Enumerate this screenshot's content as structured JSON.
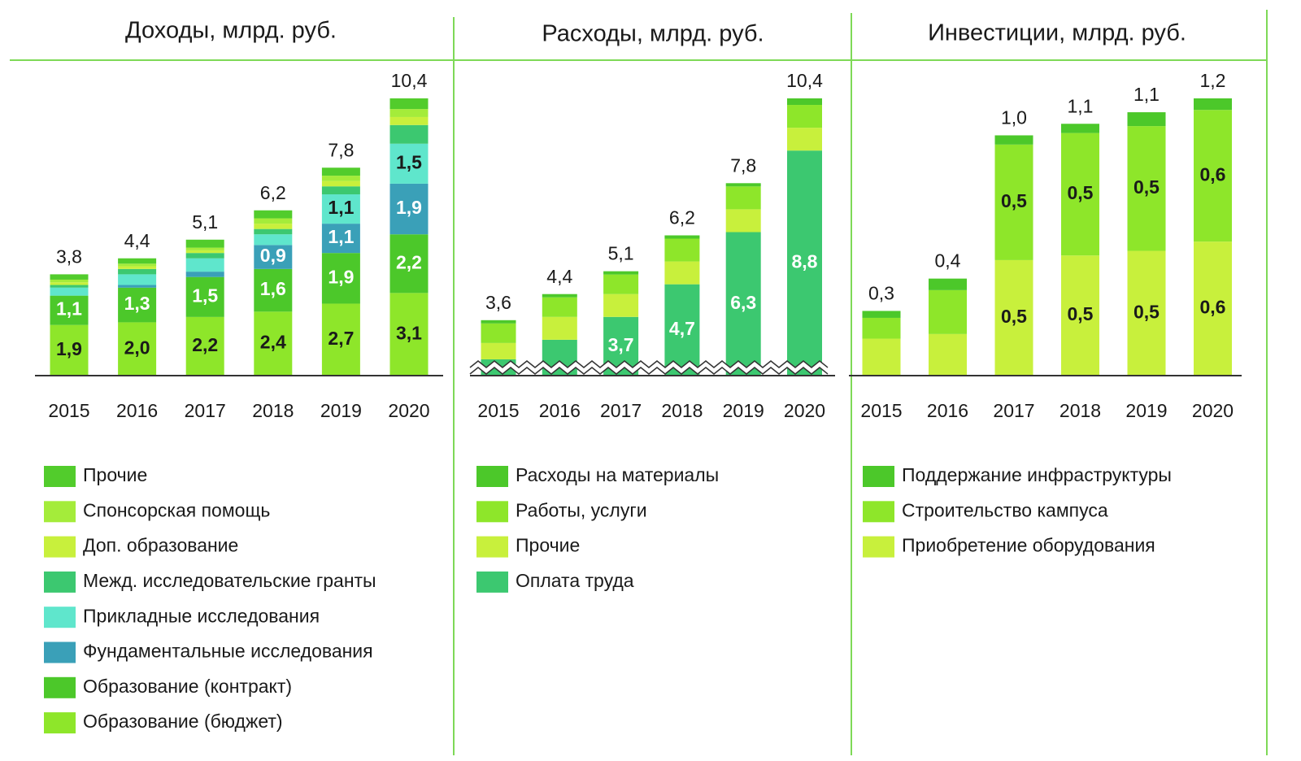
{
  "chart_data": [
    {
      "type": "bar",
      "stacked": true,
      "title": "Доходы, млрд. руб.",
      "categories": [
        "2015",
        "2016",
        "2017",
        "2018",
        "2019",
        "2020"
      ],
      "ylim": [
        0,
        10.4
      ],
      "axis_break": false,
      "series": [
        {
          "name": "Образование (бюджет)",
          "color": "#8ee62a",
          "label_color": "#1a1a1a",
          "values": [
            1.9,
            2.0,
            2.2,
            2.4,
            2.7,
            3.1
          ],
          "value_labels": [
            "1,9",
            "2,0",
            "2,2",
            "2,4",
            "2,7",
            "3,1"
          ]
        },
        {
          "name": "Образование (контракт)",
          "color": "#4cc82a",
          "label_color": "#ffffff",
          "values": [
            1.1,
            1.3,
            1.5,
            1.6,
            1.9,
            2.2
          ],
          "value_labels": [
            "1,1",
            "1,3",
            "1,5",
            "1,6",
            "1,9",
            "2,2"
          ]
        },
        {
          "name": "Фундаментальные исследования",
          "color": "#3aa0b8",
          "label_color": "#ffffff",
          "values": [
            0.0,
            0.1,
            0.2,
            0.9,
            1.1,
            1.9
          ],
          "value_labels": [
            null,
            null,
            null,
            "0,9",
            "1,1",
            "1,9"
          ]
        },
        {
          "name": "Прикладные исследования",
          "color": "#5fe6cc",
          "label_color": "#1a1a1a",
          "values": [
            0.3,
            0.4,
            0.5,
            0.4,
            1.1,
            1.5
          ],
          "value_labels": [
            null,
            null,
            null,
            null,
            "1,1",
            "1,5"
          ]
        },
        {
          "name": "Межд. исследовательские гранты",
          "color": "#3cc870",
          "label_color": "#1a1a1a",
          "values": [
            0.1,
            0.2,
            0.2,
            0.2,
            0.3,
            0.7
          ]
        },
        {
          "name": "Доп. образование",
          "color": "#c8f03c",
          "label_color": "#1a1a1a",
          "values": [
            0.1,
            0.1,
            0.1,
            0.2,
            0.2,
            0.3
          ]
        },
        {
          "name": "Спонсорская помощь",
          "color": "#a4ec3a",
          "label_color": "#1a1a1a",
          "values": [
            0.1,
            0.1,
            0.1,
            0.2,
            0.2,
            0.3
          ]
        },
        {
          "name": "Прочие",
          "color": "#52cc2c",
          "label_color": "#1a1a1a",
          "values": [
            0.2,
            0.2,
            0.3,
            0.3,
            0.3,
            0.4
          ]
        }
      ],
      "total_labels": [
        "3,8",
        "4,4",
        "5,1",
        "6,2",
        "7,8",
        "10,4"
      ]
    },
    {
      "type": "bar",
      "stacked": true,
      "title": "Расходы, млрд. руб.",
      "categories": [
        "2015",
        "2016",
        "2017",
        "2018",
        "2019",
        "2020"
      ],
      "ylim": [
        1.9,
        10.4
      ],
      "axis_break": true,
      "series": [
        {
          "name": "Оплата труда",
          "color": "#3cc870",
          "label_color": "#ffffff",
          "values": [
            2.4,
            3.0,
            3.7,
            4.7,
            6.3,
            8.8
          ],
          "value_labels": [
            null,
            null,
            "3,7",
            "4,7",
            "6,3",
            "8,8"
          ]
        },
        {
          "name": "Прочие",
          "color": "#c8f03c",
          "label_color": "#1a1a1a",
          "values": [
            0.5,
            0.7,
            0.7,
            0.7,
            0.7,
            0.7
          ]
        },
        {
          "name": "Работы, услуги",
          "color": "#8ee62a",
          "label_color": "#1a1a1a",
          "values": [
            0.6,
            0.6,
            0.6,
            0.7,
            0.7,
            0.7
          ]
        },
        {
          "name": "Расходы на материалы",
          "color": "#4cc82a",
          "label_color": "#1a1a1a",
          "values": [
            0.1,
            0.1,
            0.1,
            0.1,
            0.1,
            0.2
          ]
        }
      ],
      "total_labels": [
        "3,6",
        "4,4",
        "5,1",
        "6,2",
        "7,8",
        "10,4"
      ]
    },
    {
      "type": "bar",
      "stacked": true,
      "title": "Инвестиции, млрд. руб.",
      "categories": [
        "2015",
        "2016",
        "2017",
        "2018",
        "2019",
        "2020"
      ],
      "ylim": [
        0,
        1.2
      ],
      "axis_break": false,
      "series": [
        {
          "name": "Приобретение оборудования",
          "color": "#c8f03c",
          "label_color": "#1a1a1a",
          "values": [
            0.16,
            0.18,
            0.5,
            0.52,
            0.54,
            0.58
          ],
          "value_labels": [
            null,
            null,
            "0,5",
            "0,5",
            "0,5",
            "0,6"
          ]
        },
        {
          "name": "Строительство кампуса",
          "color": "#8ee62a",
          "label_color": "#1a1a1a",
          "values": [
            0.09,
            0.19,
            0.5,
            0.53,
            0.54,
            0.57
          ],
          "value_labels": [
            null,
            null,
            "0,5",
            "0,5",
            "0,5",
            "0,6"
          ]
        },
        {
          "name": "Поддержание инфраструктуры",
          "color": "#4cc82a",
          "label_color": "#1a1a1a",
          "values": [
            0.03,
            0.05,
            0.04,
            0.04,
            0.06,
            0.05
          ]
        }
      ],
      "total_labels": [
        "0,3",
        "0,4",
        "1,0",
        "1,1",
        "1,1",
        "1,2"
      ]
    }
  ]
}
